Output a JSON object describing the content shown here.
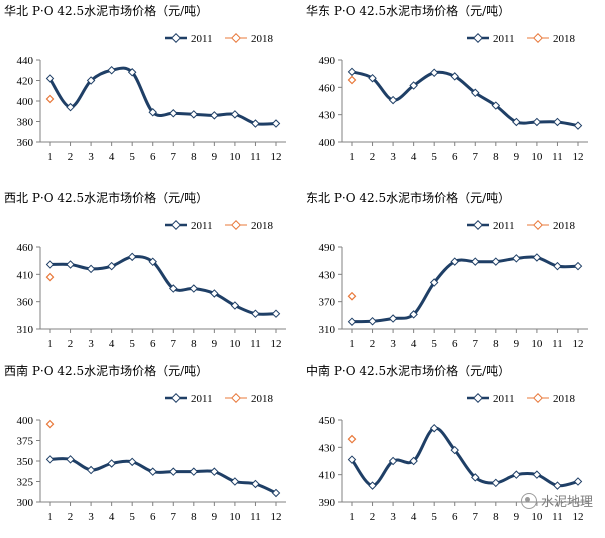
{
  "watermark": "水泥地理",
  "colors": {
    "series_2011": "#1f3f66",
    "series_2018": "#e8783a",
    "axis": "#808080"
  },
  "chart_data": [
    {
      "type": "line",
      "title": "华北 P·O 42.5水泥市场价格（元/吨）",
      "x": [
        1,
        2,
        3,
        4,
        5,
        6,
        7,
        8,
        9,
        10,
        11,
        12
      ],
      "ylim": [
        360,
        440
      ],
      "yticks": [
        360,
        380,
        400,
        420,
        440
      ],
      "series": [
        {
          "name": "2011",
          "values": [
            422,
            394,
            420,
            430,
            428,
            389,
            388,
            387,
            386,
            387,
            378,
            378
          ]
        },
        {
          "name": "2018",
          "values": [
            402,
            null,
            null,
            null,
            null,
            null,
            null,
            null,
            null,
            null,
            null,
            null
          ]
        }
      ]
    },
    {
      "type": "line",
      "title": "华东 P·O 42.5水泥市场价格（元/吨）",
      "x": [
        1,
        2,
        3,
        4,
        5,
        6,
        7,
        8,
        9,
        10,
        11,
        12
      ],
      "ylim": [
        400,
        490
      ],
      "yticks": [
        400,
        430,
        460,
        490
      ],
      "series": [
        {
          "name": "2011",
          "values": [
            477,
            470,
            446,
            462,
            476,
            472,
            454,
            440,
            422,
            422,
            422,
            418
          ]
        },
        {
          "name": "2018",
          "values": [
            468,
            null,
            null,
            null,
            null,
            null,
            null,
            null,
            null,
            null,
            null,
            null
          ]
        }
      ]
    },
    {
      "type": "line",
      "title": "西北 P·O 42.5水泥市场价格（元/吨）",
      "x": [
        1,
        2,
        3,
        4,
        5,
        6,
        7,
        8,
        9,
        10,
        11,
        12
      ],
      "ylim": [
        310,
        460
      ],
      "yticks": [
        310,
        360,
        410,
        460
      ],
      "series": [
        {
          "name": "2011",
          "values": [
            428,
            428,
            420,
            425,
            442,
            433,
            384,
            384,
            375,
            353,
            338,
            338
          ]
        },
        {
          "name": "2018",
          "values": [
            405,
            null,
            null,
            null,
            null,
            null,
            null,
            null,
            null,
            null,
            null,
            null
          ]
        }
      ]
    },
    {
      "type": "line",
      "title": "东北 P·O 42.5水泥市场价格（元/吨）",
      "x": [
        1,
        2,
        3,
        4,
        5,
        6,
        7,
        8,
        9,
        10,
        11,
        12
      ],
      "ylim": [
        310,
        490
      ],
      "yticks": [
        310,
        370,
        430,
        490
      ],
      "series": [
        {
          "name": "2011",
          "values": [
            326,
            327,
            333,
            342,
            412,
            458,
            458,
            458,
            465,
            467,
            448,
            448
          ]
        },
        {
          "name": "2018",
          "values": [
            382,
            null,
            null,
            null,
            null,
            null,
            null,
            null,
            null,
            null,
            null,
            null
          ]
        }
      ]
    },
    {
      "type": "line",
      "title": "西南 P·O 42.5水泥市场价格（元/吨）",
      "x": [
        1,
        2,
        3,
        4,
        5,
        6,
        7,
        8,
        9,
        10,
        11,
        12
      ],
      "ylim": [
        300,
        400
      ],
      "yticks": [
        300,
        325,
        350,
        375,
        400
      ],
      "series": [
        {
          "name": "2011",
          "values": [
            352,
            352,
            339,
            347,
            349,
            337,
            337,
            337,
            337,
            325,
            322,
            311
          ]
        },
        {
          "name": "2018",
          "values": [
            395,
            null,
            null,
            null,
            null,
            null,
            null,
            null,
            null,
            null,
            null,
            null
          ]
        }
      ]
    },
    {
      "type": "line",
      "title": "中南 P·O 42.5水泥市场价格（元/吨）",
      "x": [
        1,
        2,
        3,
        4,
        5,
        6,
        7,
        8,
        9,
        10,
        11,
        12
      ],
      "ylim": [
        390,
        450
      ],
      "yticks": [
        390,
        410,
        430,
        450
      ],
      "series": [
        {
          "name": "2011",
          "values": [
            421,
            402,
            420,
            420,
            444,
            428,
            408,
            404,
            410,
            410,
            402,
            405
          ]
        },
        {
          "name": "2018",
          "values": [
            436,
            null,
            null,
            null,
            null,
            null,
            null,
            null,
            null,
            null,
            null,
            null
          ]
        }
      ]
    }
  ]
}
